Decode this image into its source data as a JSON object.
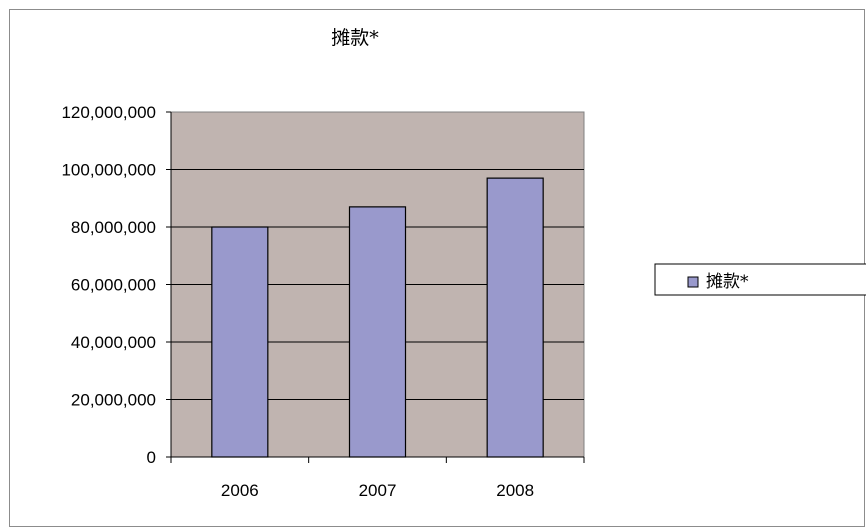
{
  "chart_data": {
    "type": "bar",
    "title": "摊款*",
    "categories": [
      "2006",
      "2007",
      "2008"
    ],
    "series": [
      {
        "name": "摊款*",
        "values": [
          80000000,
          87000000,
          97000000
        ],
        "color": "#9999cc"
      }
    ],
    "y_ticks": [
      "0",
      "20,000,000",
      "40,000,000",
      "60,000,000",
      "80,000,000",
      "100,000,000",
      "120,000,000"
    ],
    "ylim": [
      0,
      120000000
    ],
    "plot_background": "#c0b4b0",
    "grid": true,
    "legend_position": "right"
  }
}
